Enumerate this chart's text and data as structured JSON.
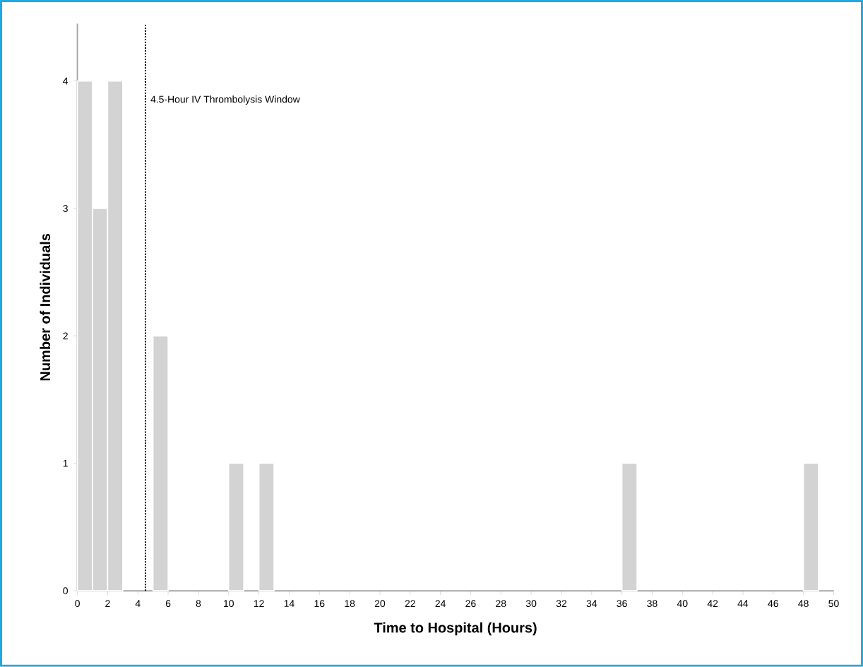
{
  "chart_data": {
    "type": "histogram",
    "xlabel": "Time to Hospital (Hours)",
    "ylabel": "Number of Individuals",
    "bins": [
      0,
      1,
      2,
      3,
      4,
      5,
      6,
      7,
      8,
      9,
      10,
      11,
      12,
      13,
      14,
      15,
      16,
      17,
      18,
      19,
      20,
      21,
      22,
      23,
      24,
      25,
      26,
      27,
      28,
      29,
      30,
      31,
      32,
      33,
      34,
      35,
      36,
      37,
      38,
      39,
      40,
      41,
      42,
      43,
      44,
      45,
      46,
      47,
      48,
      49
    ],
    "values": [
      4,
      3,
      4,
      0,
      0,
      2,
      0,
      0,
      0,
      0,
      1,
      0,
      1,
      0,
      0,
      0,
      0,
      0,
      0,
      0,
      0,
      0,
      0,
      0,
      0,
      0,
      0,
      0,
      0,
      0,
      0,
      0,
      0,
      0,
      0,
      0,
      1,
      0,
      0,
      0,
      0,
      0,
      0,
      0,
      0,
      0,
      0,
      0,
      1
    ],
    "color": "#d3d3d3",
    "xlim": [
      0,
      50
    ],
    "ylim": [
      0,
      4.45
    ],
    "xticks": [
      0,
      2,
      4,
      6,
      8,
      10,
      12,
      14,
      16,
      18,
      20,
      22,
      24,
      26,
      28,
      30,
      32,
      34,
      36,
      38,
      40,
      42,
      44,
      46,
      48,
      50
    ],
    "yticks": [
      0,
      1,
      2,
      3,
      4
    ],
    "grid": false,
    "ref_lines": [
      {
        "axis": "x",
        "value": 4.5,
        "label": "4.5-Hour IV Thrombolysis Window",
        "color": "#000000",
        "line_style": "dotted"
      }
    ]
  }
}
